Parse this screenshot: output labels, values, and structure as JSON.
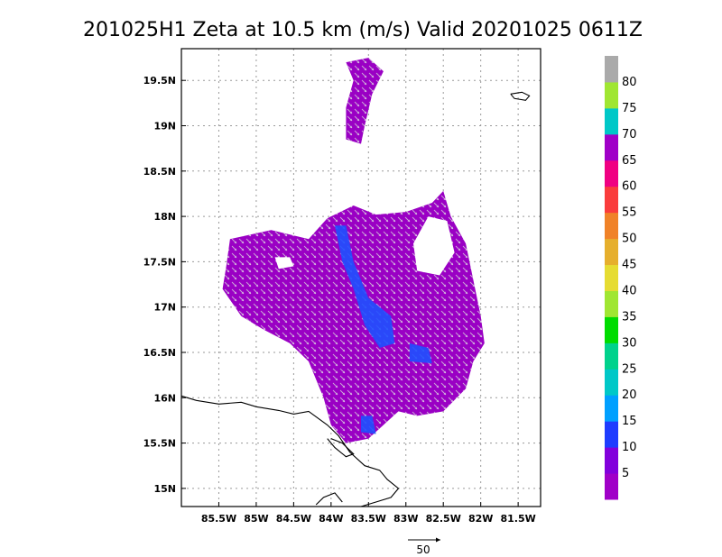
{
  "chart_data": {
    "type": "heatmap",
    "title": "201025H1 Zeta at 10.5 km (m/s) Valid 20201025 0611Z",
    "xlim": [
      -86.0,
      -81.2
    ],
    "ylim": [
      14.8,
      19.85
    ],
    "x_ticks": [
      {
        "value": -85.5,
        "label": "85.5W"
      },
      {
        "value": -85.0,
        "label": "85W"
      },
      {
        "value": -84.5,
        "label": "84.5W"
      },
      {
        "value": -84.0,
        "label": "84W"
      },
      {
        "value": -83.5,
        "label": "83.5W"
      },
      {
        "value": -83.0,
        "label": "83W"
      },
      {
        "value": -82.5,
        "label": "82.5W"
      },
      {
        "value": -82.0,
        "label": "82W"
      },
      {
        "value": -81.5,
        "label": "81.5W"
      }
    ],
    "y_ticks": [
      {
        "value": 15.0,
        "label": "15N"
      },
      {
        "value": 15.5,
        "label": "15.5N"
      },
      {
        "value": 16.0,
        "label": "16N"
      },
      {
        "value": 16.5,
        "label": "16.5N"
      },
      {
        "value": 17.0,
        "label": "17N"
      },
      {
        "value": 17.5,
        "label": "17.5N"
      },
      {
        "value": 18.0,
        "label": "18N"
      },
      {
        "value": 18.5,
        "label": "18.5N"
      },
      {
        "value": 19.0,
        "label": "19N"
      },
      {
        "value": 19.5,
        "label": "19.5N"
      }
    ],
    "grid": true,
    "colorbar": {
      "placement": "right",
      "colors": [
        "#a000c8",
        "#8200dc",
        "#1e3cff",
        "#00a0ff",
        "#00c8c8",
        "#00d28c",
        "#00dc00",
        "#a0e632",
        "#e6dc32",
        "#e6af2d",
        "#f08228",
        "#fa3c3c",
        "#f00082",
        "#a000c8",
        "#00c8c8",
        "#a0e632",
        "#aaaaaa"
      ],
      "labels": [
        "5",
        "10",
        "15",
        "20",
        "25",
        "30",
        "35",
        "40",
        "45",
        "50",
        "55",
        "60",
        "65",
        "70",
        "75",
        "80"
      ]
    },
    "regions": [
      {
        "name": "main echo",
        "color": "#9a00c4",
        "polygon": [
          [
            -85.4,
            17.45
          ],
          [
            -85.35,
            17.75
          ],
          [
            -84.8,
            17.85
          ],
          [
            -84.3,
            17.75
          ],
          [
            -84.05,
            17.98
          ],
          [
            -83.7,
            18.12
          ],
          [
            -83.4,
            18.02
          ],
          [
            -83.0,
            18.05
          ],
          [
            -82.65,
            18.15
          ],
          [
            -82.5,
            18.28
          ],
          [
            -82.4,
            18.0
          ],
          [
            -82.2,
            17.7
          ],
          [
            -82.1,
            17.3
          ],
          [
            -82.0,
            16.9
          ],
          [
            -81.95,
            16.6
          ],
          [
            -82.1,
            16.4
          ],
          [
            -82.2,
            16.1
          ],
          [
            -82.5,
            15.85
          ],
          [
            -82.85,
            15.8
          ],
          [
            -83.1,
            15.85
          ],
          [
            -83.3,
            15.7
          ],
          [
            -83.5,
            15.55
          ],
          [
            -83.8,
            15.5
          ],
          [
            -84.0,
            15.7
          ],
          [
            -84.1,
            16.0
          ],
          [
            -84.3,
            16.4
          ],
          [
            -84.55,
            16.6
          ],
          [
            -84.9,
            16.75
          ],
          [
            -85.2,
            16.9
          ],
          [
            -85.45,
            17.2
          ]
        ]
      },
      {
        "name": "northern band",
        "color": "#9a00c4",
        "polygon": [
          [
            -83.8,
            19.7
          ],
          [
            -83.5,
            19.75
          ],
          [
            -83.3,
            19.6
          ],
          [
            -83.45,
            19.35
          ],
          [
            -83.55,
            19.0
          ],
          [
            -83.6,
            18.8
          ],
          [
            -83.8,
            18.85
          ],
          [
            -83.8,
            19.2
          ],
          [
            -83.7,
            19.5
          ]
        ]
      }
    ],
    "holes": [
      {
        "name": "eye gap",
        "polygon": [
          [
            -82.9,
            17.7
          ],
          [
            -82.7,
            18.0
          ],
          [
            -82.45,
            17.95
          ],
          [
            -82.35,
            17.6
          ],
          [
            -82.55,
            17.35
          ],
          [
            -82.85,
            17.4
          ]
        ]
      },
      {
        "name": "west gap",
        "polygon": [
          [
            -84.75,
            17.55
          ],
          [
            -84.55,
            17.55
          ],
          [
            -84.5,
            17.45
          ],
          [
            -84.7,
            17.42
          ]
        ]
      }
    ],
    "patches": [
      {
        "value_range": "10-15",
        "color": "#1e50ff",
        "polygon": [
          [
            -83.95,
            17.9
          ],
          [
            -83.85,
            17.5
          ],
          [
            -83.7,
            17.2
          ],
          [
            -83.55,
            16.8
          ],
          [
            -83.35,
            16.55
          ],
          [
            -83.15,
            16.6
          ],
          [
            -83.2,
            16.9
          ],
          [
            -83.5,
            17.1
          ],
          [
            -83.7,
            17.5
          ],
          [
            -83.8,
            17.9
          ]
        ]
      },
      {
        "value_range": "10-15",
        "color": "#1e50ff",
        "polygon": [
          [
            -82.95,
            16.6
          ],
          [
            -82.7,
            16.55
          ],
          [
            -82.65,
            16.38
          ],
          [
            -82.95,
            16.4
          ]
        ]
      },
      {
        "value_range": "10-15",
        "color": "#1e50ff",
        "polygon": [
          [
            -83.6,
            15.8
          ],
          [
            -83.45,
            15.8
          ],
          [
            -83.4,
            15.6
          ],
          [
            -83.6,
            15.62
          ]
        ]
      }
    ],
    "vector_reference": {
      "label": "50"
    }
  },
  "coastlines": [
    [
      [
        -86.0,
        16.02
      ],
      [
        -85.8,
        15.97
      ],
      [
        -85.5,
        15.93
      ],
      [
        -85.2,
        15.95
      ],
      [
        -85.0,
        15.9
      ],
      [
        -84.7,
        15.86
      ],
      [
        -84.5,
        15.82
      ],
      [
        -84.3,
        15.85
      ],
      [
        -84.05,
        15.7
      ],
      [
        -83.9,
        15.58
      ],
      [
        -83.75,
        15.4
      ],
      [
        -83.55,
        15.25
      ],
      [
        -83.35,
        15.2
      ],
      [
        -83.25,
        15.1
      ],
      [
        -83.1,
        15.0
      ],
      [
        -83.2,
        14.9
      ],
      [
        -83.4,
        14.85
      ],
      [
        -83.6,
        14.8
      ]
    ],
    [
      [
        -84.05,
        15.55
      ],
      [
        -83.95,
        15.45
      ],
      [
        -83.8,
        15.35
      ],
      [
        -83.7,
        15.38
      ],
      [
        -83.85,
        15.5
      ],
      [
        -84.0,
        15.55
      ]
    ],
    [
      [
        -81.6,
        19.35
      ],
      [
        -81.45,
        19.37
      ],
      [
        -81.35,
        19.33
      ],
      [
        -81.4,
        19.28
      ],
      [
        -81.55,
        19.3
      ],
      [
        -81.6,
        19.35
      ]
    ],
    [
      [
        -84.2,
        14.82
      ],
      [
        -84.1,
        14.9
      ],
      [
        -83.95,
        14.95
      ],
      [
        -83.85,
        14.85
      ]
    ]
  ]
}
